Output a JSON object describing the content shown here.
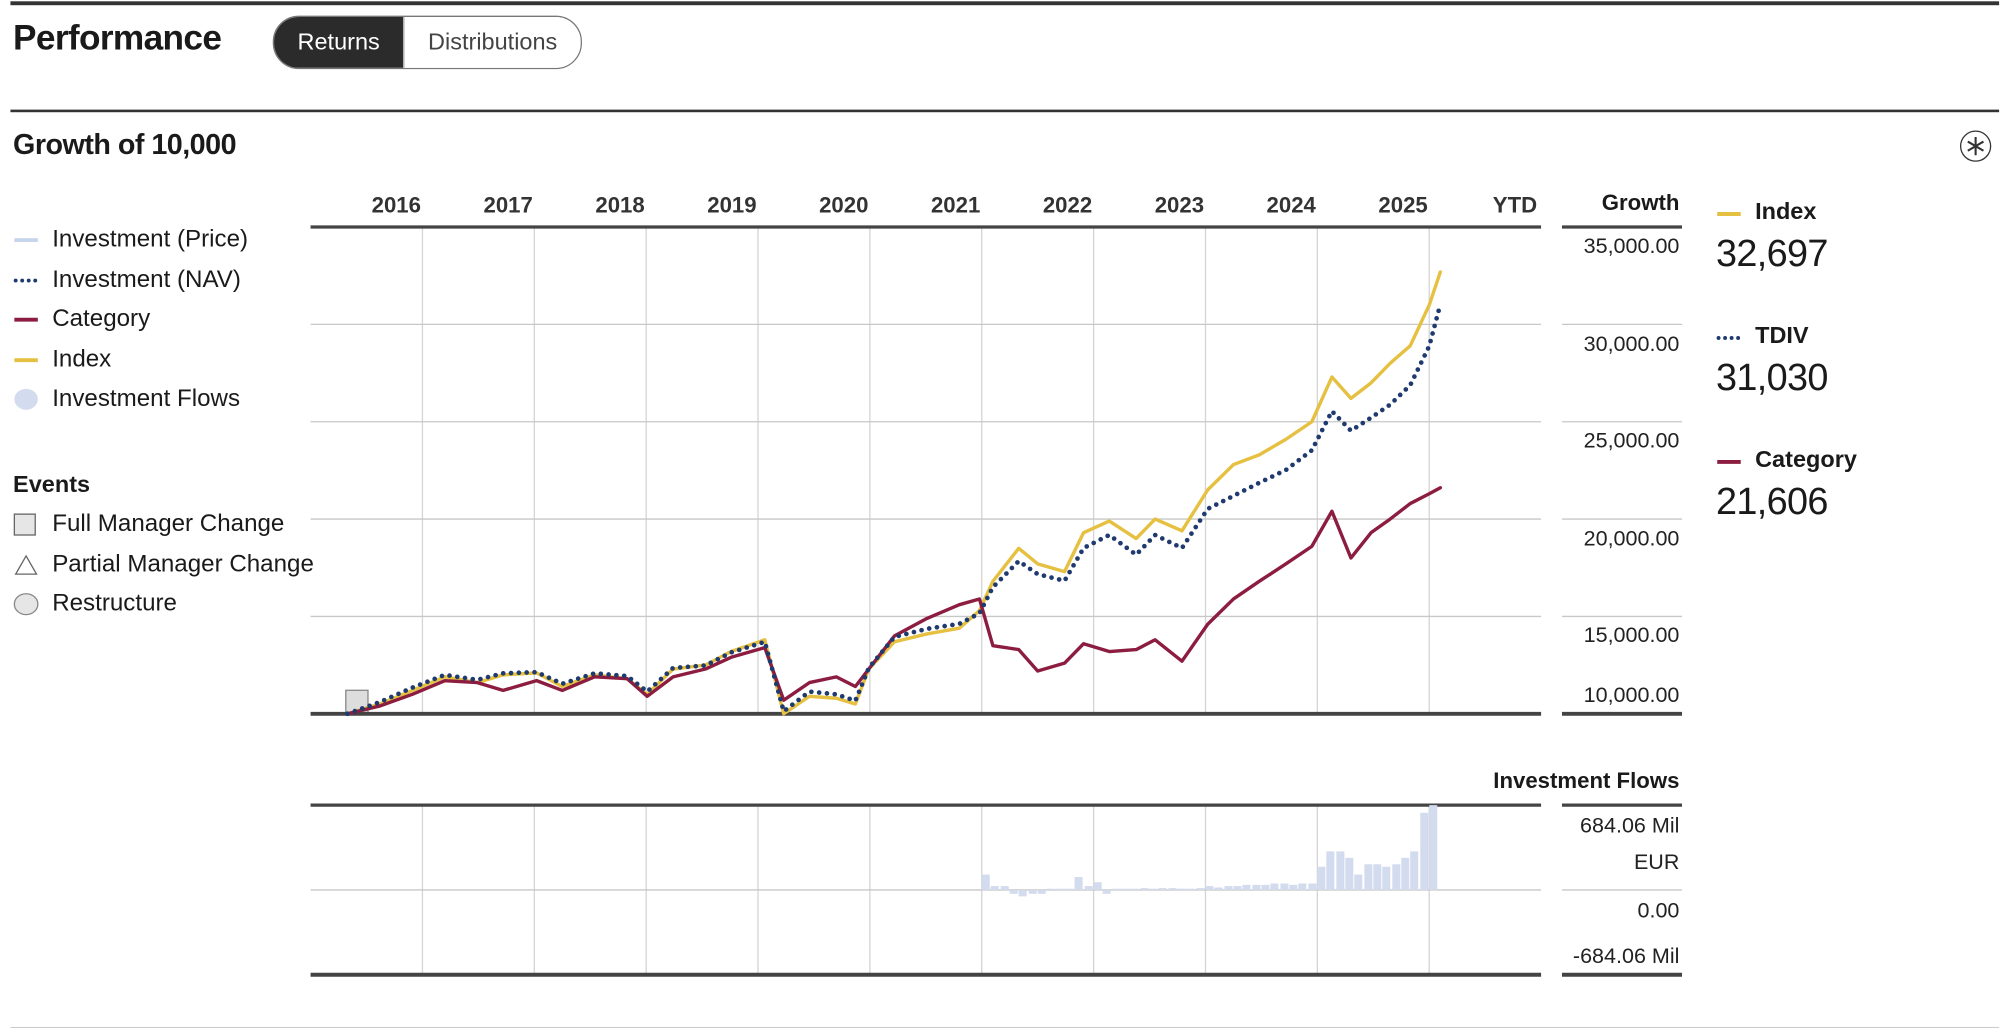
{
  "header": {
    "title": "Performance",
    "tabs": [
      "Returns",
      "Distributions"
    ],
    "active_tab": 0
  },
  "section": {
    "title": "Growth of 10,000"
  },
  "legend": [
    {
      "label": "Investment (Price)",
      "color": "#c6d6ea",
      "marker": "line"
    },
    {
      "label": "Investment (NAV)",
      "color": "#1f3a6e",
      "marker": "dots"
    },
    {
      "label": "Category",
      "color": "#8c1d40",
      "marker": "line"
    },
    {
      "label": "Index",
      "color": "#e5c041",
      "marker": "line"
    },
    {
      "label": "Investment Flows",
      "color": "#d3dbee",
      "marker": "circle"
    }
  ],
  "events": {
    "title": "Events",
    "items": [
      {
        "label": "Full Manager Change",
        "marker": "square"
      },
      {
        "label": "Partial Manager Change",
        "marker": "triangle"
      },
      {
        "label": "Restructure",
        "marker": "circle"
      }
    ]
  },
  "chart_data": [
    {
      "type": "line",
      "axis_title": "Growth",
      "columns": [
        "2016",
        "2017",
        "2018",
        "2019",
        "2020",
        "2021",
        "2022",
        "2023",
        "2024",
        "2025",
        "YTD"
      ],
      "xlim": [
        2016,
        2027
      ],
      "ylim": [
        10000,
        35000
      ],
      "yticks": [
        {
          "value": 10000,
          "label": "10,000.00"
        },
        {
          "value": 15000,
          "label": "15,000.00"
        },
        {
          "value": 20000,
          "label": "20,000.00"
        },
        {
          "value": 25000,
          "label": "25,000.00"
        },
        {
          "value": 30000,
          "label": "30,000.00"
        },
        {
          "value": 35000,
          "label": "35,000.00"
        }
      ],
      "grid": true,
      "x": [
        2016.33,
        2016.62,
        2016.91,
        2017.2,
        2017.49,
        2017.72,
        2018.02,
        2018.25,
        2018.54,
        2018.83,
        2019.01,
        2019.24,
        2019.53,
        2019.76,
        2020.06,
        2020.23,
        2020.46,
        2020.7,
        2020.87,
        2020.99,
        2021.22,
        2021.51,
        2021.8,
        2021.98,
        2022.1,
        2022.33,
        2022.5,
        2022.74,
        2022.91,
        2023.14,
        2023.38,
        2023.55,
        2023.79,
        2024.02,
        2024.25,
        2024.48,
        2024.72,
        2024.95,
        2025.13,
        2025.3,
        2025.48,
        2025.65,
        2025.83,
        2026.0,
        2026.1
      ],
      "series": [
        {
          "name": "Index",
          "color": "#e5c041",
          "style": "solid",
          "end_label": "32,697",
          "values": [
            10000,
            10500,
            11200,
            11900,
            11600,
            12000,
            12100,
            11400,
            12000,
            11800,
            11000,
            12300,
            12500,
            13200,
            13800,
            10000,
            10900,
            10800,
            10500,
            12300,
            13700,
            14100,
            14400,
            15300,
            16800,
            18500,
            17700,
            17300,
            19300,
            19900,
            19000,
            20000,
            19400,
            21500,
            22800,
            23300,
            24100,
            25000,
            27300,
            26200,
            27000,
            28000,
            28900,
            31000,
            32697
          ]
        },
        {
          "name": "TDIV",
          "color": "#1f3a6e",
          "style": "dotted",
          "end_label": "31,030",
          "values": [
            10000,
            10600,
            11340,
            12000,
            11740,
            12080,
            12140,
            11540,
            12080,
            11940,
            11140,
            12350,
            12480,
            13150,
            13690,
            10130,
            11140,
            11000,
            10670,
            12350,
            13950,
            14360,
            14620,
            15160,
            16500,
            17840,
            17170,
            16830,
            18510,
            19180,
            18170,
            19180,
            18510,
            20520,
            21190,
            21860,
            22530,
            23530,
            25540,
            24540,
            25210,
            25880,
            26880,
            28890,
            31030
          ]
        },
        {
          "name": "Category",
          "color": "#8c1d40",
          "style": "solid",
          "end_label": "21,606",
          "values": [
            10000,
            10400,
            11000,
            11700,
            11600,
            11200,
            11700,
            11200,
            11900,
            11800,
            10900,
            11900,
            12300,
            12900,
            13400,
            10700,
            11600,
            11900,
            11400,
            12300,
            14000,
            14900,
            15600,
            15900,
            13500,
            13300,
            12200,
            12600,
            13600,
            13200,
            13300,
            13800,
            12700,
            14600,
            15900,
            16800,
            17700,
            18600,
            20400,
            18000,
            19300,
            20000,
            20800,
            21300,
            21606
          ]
        }
      ]
    },
    {
      "type": "bar",
      "title": "Investment Flows",
      "color": "#d3dbee",
      "xlim": [
        2016,
        2027
      ],
      "ylim": [
        -684.06,
        684.06
      ],
      "yticks": [
        {
          "value": -684.06,
          "label": "-684.06 Mil"
        },
        {
          "value": 0,
          "label": "0.00"
        },
        {
          "value": 684.06,
          "label": "684.06 Mil EUR"
        }
      ],
      "x": [
        2022.0,
        2022.08,
        2022.17,
        2022.25,
        2022.33,
        2022.42,
        2022.5,
        2022.58,
        2022.67,
        2022.75,
        2022.83,
        2022.92,
        2023.0,
        2023.08,
        2023.17,
        2023.25,
        2023.33,
        2023.42,
        2023.5,
        2023.58,
        2023.67,
        2023.75,
        2023.83,
        2023.92,
        2024.0,
        2024.08,
        2024.17,
        2024.25,
        2024.33,
        2024.42,
        2024.5,
        2024.58,
        2024.67,
        2024.75,
        2024.83,
        2024.92,
        2025.0,
        2025.08,
        2025.17,
        2025.25,
        2025.33,
        2025.42,
        2025.5,
        2025.58,
        2025.67,
        2025.75,
        2025.83,
        2025.92,
        2026.0
      ],
      "values": [
        124,
        31,
        31,
        -31,
        -52,
        -31,
        -31,
        10,
        10,
        10,
        104,
        31,
        62,
        -31,
        10,
        10,
        10,
        15,
        10,
        15,
        15,
        10,
        10,
        15,
        31,
        20,
        31,
        31,
        41,
        41,
        41,
        52,
        52,
        41,
        52,
        52,
        187,
        311,
        311,
        259,
        124,
        207,
        207,
        187,
        207,
        259,
        311,
        622,
        684
      ]
    }
  ]
}
